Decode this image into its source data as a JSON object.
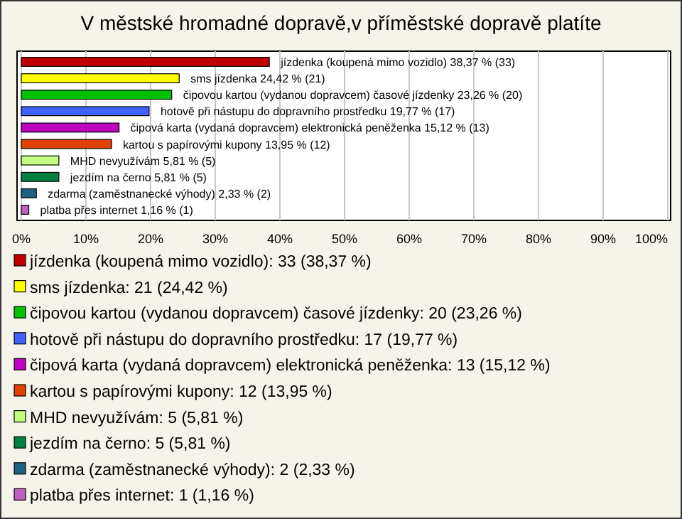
{
  "chart_data": {
    "type": "bar",
    "orientation": "horizontal",
    "title": "V městské hromadné dopravě,v příměstské dopravě platíte",
    "categories": [
      "jízdenka (koupená mimo vozidlo)",
      "sms jízdenka",
      "čipovou kartou (vydanou dopravcem) časové jízdenky",
      "hotově při nástupu do dopravního prostředku",
      "čipová karta (vydaná dopravcem) elektronická peněženka",
      "kartou s papírovými kupony",
      "MHD nevyužívám",
      "jezdím na černo",
      "zdarma (zaměstnanecké výhody)",
      "platba přes internet"
    ],
    "values": [
      38.37,
      24.42,
      23.26,
      19.77,
      15.12,
      13.95,
      5.81,
      5.81,
      2.33,
      1.16
    ],
    "value_labels": [
      "38,37 % (33)",
      "24,42 % (21)",
      "23,26 % (20)",
      "19,77 % (17)",
      "15,12 % (13)",
      "13,95 % (12)",
      "5,81 % (5)",
      "5,81 % (5)",
      "2,33 % (2)",
      "1,16 % (1)"
    ],
    "colors": [
      "#c00000",
      "#ffff00",
      "#00c000",
      "#4060ff",
      "#c000c0",
      "#e04000",
      "#c0ff80",
      "#008040",
      "#206080",
      "#c060c0"
    ],
    "xlim": [
      0,
      100
    ],
    "xticks": [
      {
        "value": 0,
        "label": "0%"
      },
      {
        "value": 10,
        "label": "10%"
      },
      {
        "value": 20,
        "label": "20%"
      },
      {
        "value": 30,
        "label": "30%"
      },
      {
        "value": 40,
        "label": "40%"
      },
      {
        "value": 50,
        "label": "50%"
      },
      {
        "value": 60,
        "label": "60%"
      },
      {
        "value": 70,
        "label": "70%"
      },
      {
        "value": 80,
        "label": "80%"
      },
      {
        "value": 90,
        "label": "90%"
      },
      {
        "value": 100,
        "label": "100%"
      }
    ],
    "grid": "x",
    "annotations": [
      "jízdenka (koupená mimo vozidlo): 33 (38,37 %)",
      "sms jízdenka: 21 (24,42 %)",
      "čipovou kartou (vydanou dopravcem) časové jízdenky: 20 (23,26 %)",
      "hotově při nástupu do dopravního prostředku: 17 (19,77 %)",
      "čipová karta (vydaná dopravcem) elektronická peněženka: 13 (15,12 %)",
      "kartou s papírovými kupony: 12 (13,95 %)",
      "MHD nevyužívám: 5 (5,81 %)",
      "jezdím na černo: 5 (5,81 %)",
      "zdarma (zaměstnanecké výhody): 2 (2,33 %)",
      "platba přes internet: 1 (1,16 %)"
    ]
  }
}
